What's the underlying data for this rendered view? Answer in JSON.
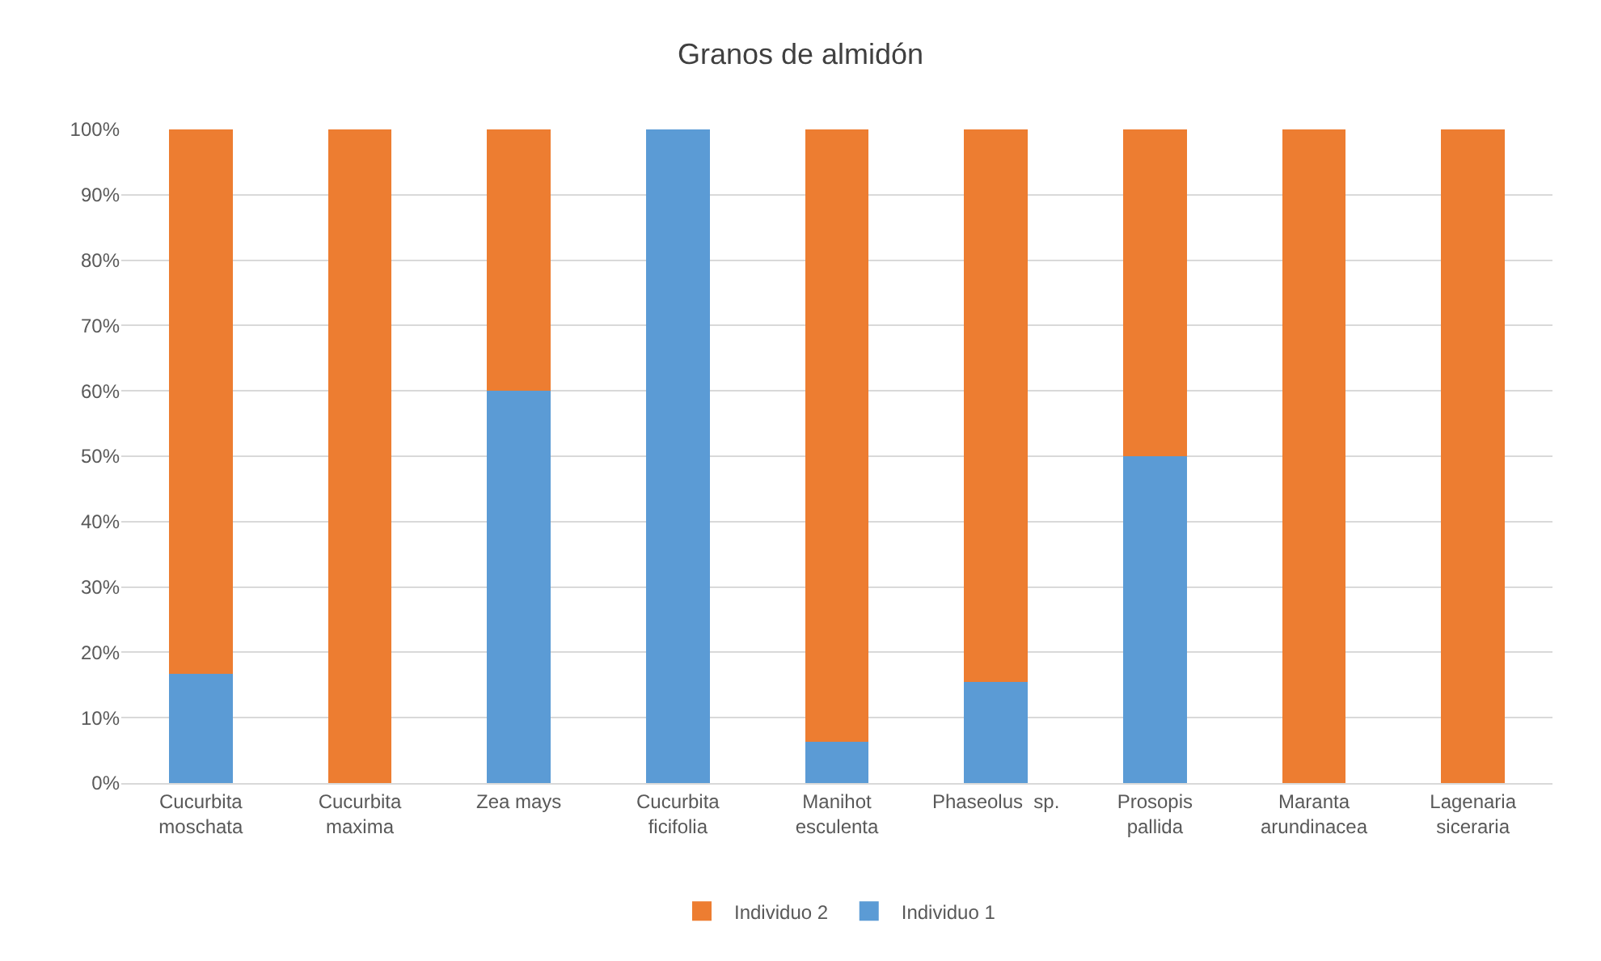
{
  "chart_data": {
    "type": "bar",
    "title": "Granos de almidón",
    "stacked": true,
    "categories": [
      "Cucurbita\nmoschata",
      "Cucurbita\nmaxima",
      "Zea mays",
      "Cucurbita\nficifolia",
      "Manihot\nesculenta",
      "Phaseolus  sp.",
      "Prosopis\npallida",
      "Maranta\narundinacea",
      "Lagenaria\nsiceraria"
    ],
    "series": [
      {
        "name": "Individuo 1",
        "color": "#5b9bd5",
        "values": [
          16.7,
          0,
          60,
          100,
          6.3,
          15.5,
          50,
          0,
          0
        ]
      },
      {
        "name": "Individuo 2",
        "color": "#ed7d31",
        "values": [
          83.3,
          100,
          40,
          0,
          93.7,
          84.5,
          50,
          100,
          100
        ]
      }
    ],
    "ylim": [
      0,
      100
    ],
    "yticks": [
      {
        "value": 0,
        "label": "0%"
      },
      {
        "value": 10,
        "label": "10%"
      },
      {
        "value": 20,
        "label": "20%"
      },
      {
        "value": 30,
        "label": "30%"
      },
      {
        "value": 40,
        "label": "40%"
      },
      {
        "value": 50,
        "label": "50%"
      },
      {
        "value": 60,
        "label": "60%"
      },
      {
        "value": 70,
        "label": "70%"
      },
      {
        "value": 80,
        "label": "80%"
      },
      {
        "value": 90,
        "label": "90%"
      },
      {
        "value": 100,
        "label": "100%"
      }
    ],
    "grid": "y",
    "legend": "bottom"
  }
}
